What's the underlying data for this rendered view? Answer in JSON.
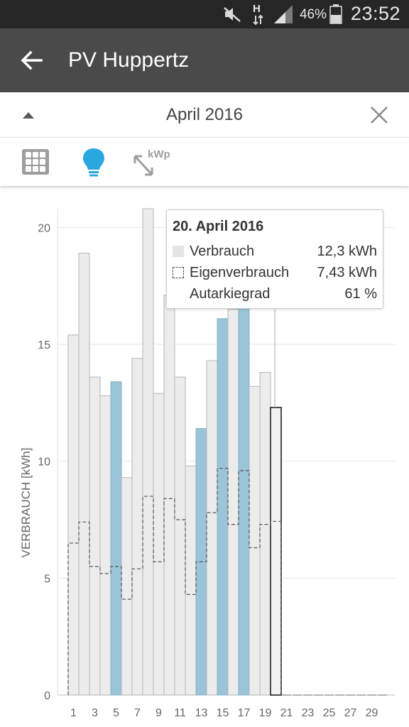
{
  "status_bar": {
    "battery_percent": "46%",
    "time": "23:52",
    "network_label": "H",
    "icons": [
      "mute-icon",
      "data-transfer-icon",
      "signal-icon",
      "battery-icon"
    ]
  },
  "app_bar": {
    "title": "PV Huppertz",
    "back_icon": "arrow-left-icon"
  },
  "month_bar": {
    "month": "April 2016",
    "collapse_icon": "triangle-up-icon",
    "close_icon": "close-icon"
  },
  "toolbar": {
    "tools": [
      {
        "name": "solar-panel-icon",
        "active": false
      },
      {
        "name": "lightbulb-icon",
        "active": true
      },
      {
        "name": "kwp-scale-icon",
        "label": "kWp",
        "active": false
      }
    ]
  },
  "colors": {
    "consumption_bar": "#ececec",
    "consumption_stroke": "#b4b4b4",
    "highlight_bar": "#9ac4d8",
    "self_consumption_line": "#555555",
    "active_icon": "#29a8e0",
    "inactive_icon": "#9e9e9e",
    "grid": "#e6e6e6"
  },
  "chart_data": {
    "type": "bar",
    "ylabel": "VERBRAUCH [kWh]",
    "ylim": [
      0,
      20.8
    ],
    "yticks": [
      0,
      5,
      10,
      15,
      20
    ],
    "xtick_labels": [
      "1",
      "3",
      "5",
      "7",
      "9",
      "11",
      "13",
      "15",
      "17",
      "19",
      "21",
      "23",
      "25",
      "27",
      "29"
    ],
    "days": [
      1,
      2,
      3,
      4,
      5,
      6,
      7,
      8,
      9,
      10,
      11,
      12,
      13,
      14,
      15,
      16,
      17,
      18,
      19,
      20,
      21,
      22,
      23,
      24,
      25,
      26,
      27,
      28,
      29,
      30
    ],
    "series": [
      {
        "name": "Verbrauch",
        "values": [
          15.4,
          18.9,
          13.6,
          12.8,
          13.4,
          9.3,
          14.4,
          20.8,
          12.9,
          17.1,
          13.6,
          9.8,
          11.4,
          14.3,
          16.1,
          16.5,
          17.3,
          13.2,
          13.8,
          12.3,
          0,
          0,
          0,
          0,
          0,
          0,
          0,
          0,
          0,
          0
        ]
      },
      {
        "name": "Eigenverbrauch",
        "values": [
          6.5,
          7.4,
          5.5,
          5.2,
          5.5,
          4.1,
          5.4,
          8.5,
          5.7,
          8.4,
          7.5,
          4.3,
          5.7,
          7.8,
          9.7,
          7.3,
          9.6,
          6.3,
          7.3,
          7.43,
          0,
          0,
          0,
          0,
          0,
          0,
          0,
          0,
          0,
          0
        ]
      }
    ],
    "highlighted_days": [
      5,
      13,
      15,
      17
    ],
    "selected_day": 20,
    "grid": true
  },
  "tooltip": {
    "title": "20. April 2016",
    "rows": [
      {
        "label": "Verbrauch",
        "value": "12,3 kWh"
      },
      {
        "label": "Eigenverbrauch",
        "value": "7,43 kWh"
      },
      {
        "label": "Autarkiegrad",
        "value": "61 %"
      }
    ]
  }
}
